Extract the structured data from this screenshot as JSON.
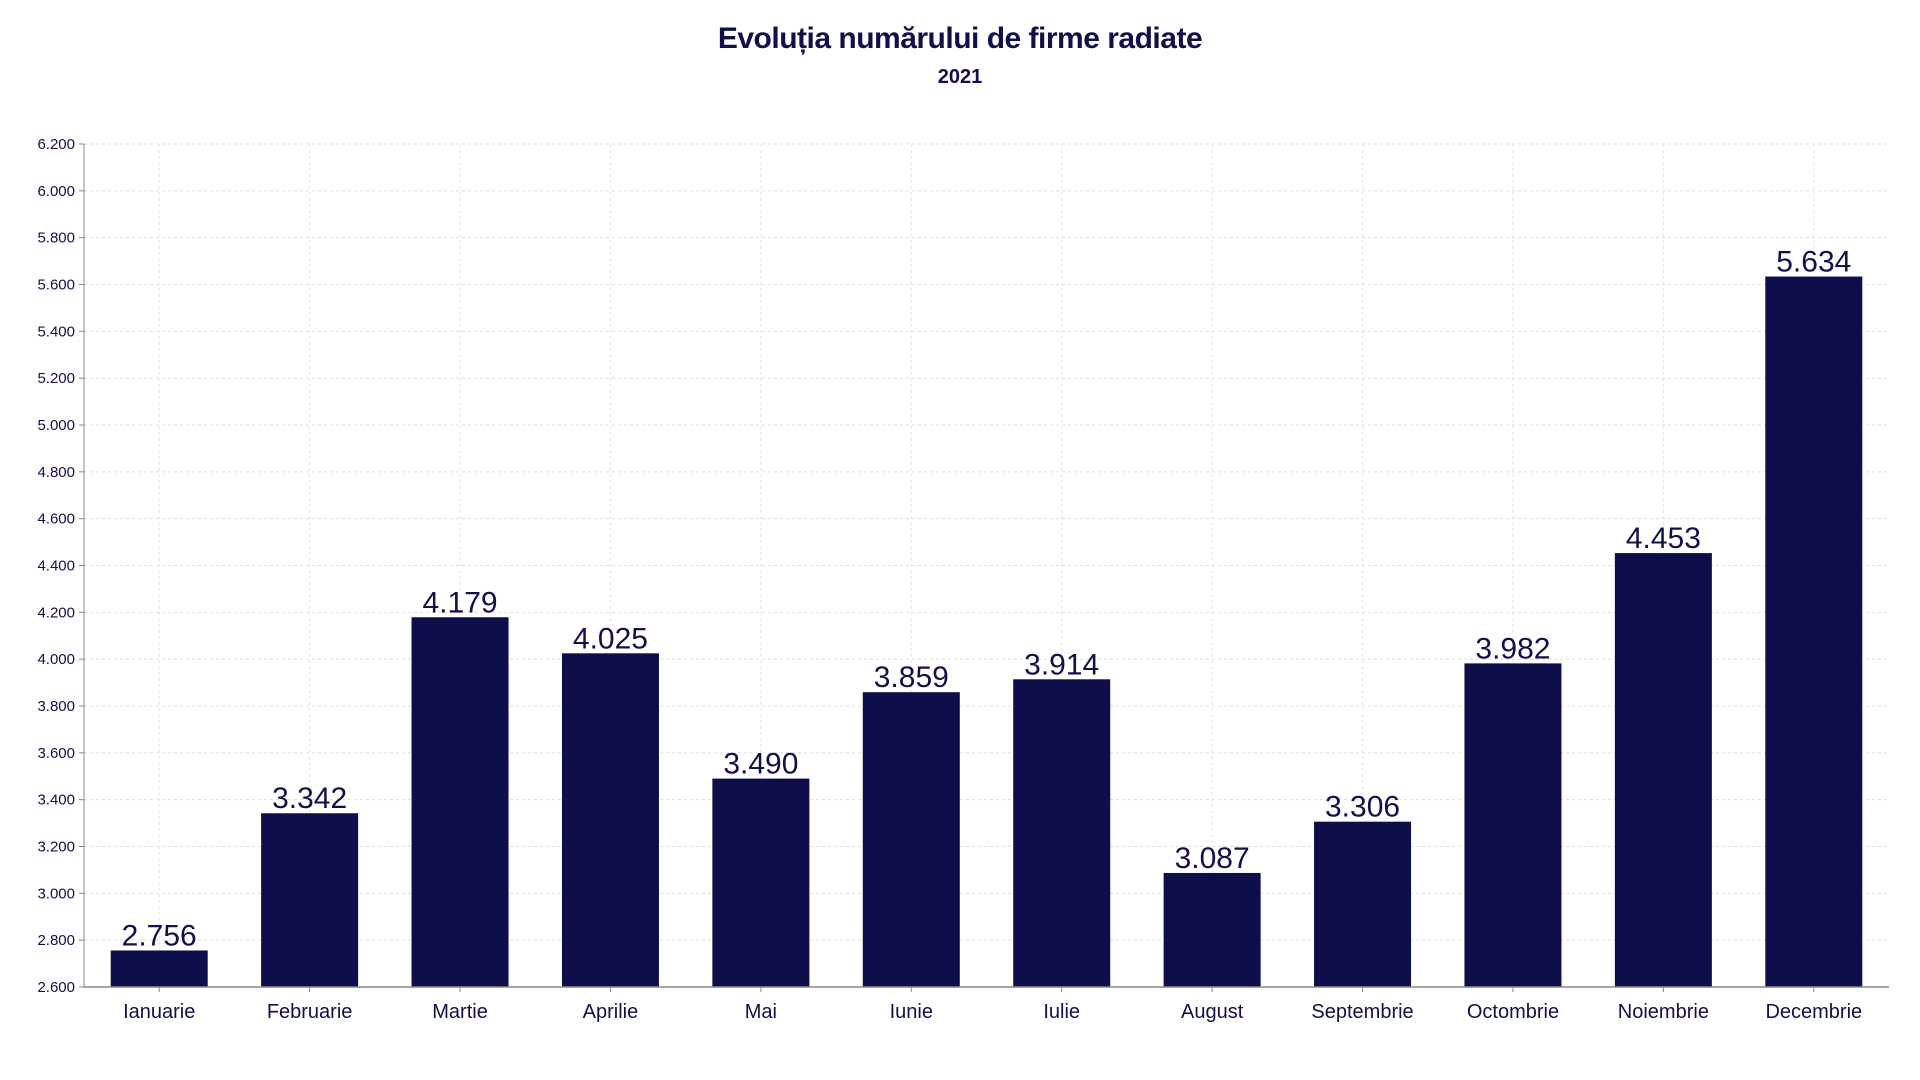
{
  "chart_data": {
    "type": "bar",
    "title": "Evoluția numărului de firme radiate",
    "subtitle": "2021",
    "xlabel": "",
    "ylabel": "",
    "categories": [
      "Ianuarie",
      "Februarie",
      "Martie",
      "Aprilie",
      "Mai",
      "Iunie",
      "Iulie",
      "August",
      "Septembrie",
      "Octombrie",
      "Noiembrie",
      "Decembrie"
    ],
    "values": [
      2756,
      3342,
      4179,
      4025,
      3490,
      3859,
      3914,
      3087,
      3306,
      3982,
      4453,
      5634
    ],
    "value_labels": [
      "2.756",
      "3.342",
      "4.179",
      "4.025",
      "3.490",
      "3.859",
      "3.914",
      "3.087",
      "3.306",
      "3.982",
      "4.453",
      "5.634"
    ],
    "ylim": [
      2600,
      6200
    ],
    "yticks": [
      2600,
      2800,
      3000,
      3200,
      3400,
      3600,
      3800,
      4000,
      4200,
      4400,
      4600,
      4800,
      5000,
      5200,
      5400,
      5600,
      5800,
      6000,
      6200
    ],
    "ytick_labels": [
      "2.600",
      "2.800",
      "3.000",
      "3.200",
      "3.400",
      "3.600",
      "3.800",
      "4.000",
      "4.200",
      "4.400",
      "4.600",
      "4.800",
      "5.000",
      "5.200",
      "5.400",
      "5.600",
      "5.800",
      "6.000",
      "6.200"
    ],
    "grid": true,
    "bar_color": "#0e0e4a",
    "text_color": "#10104a"
  }
}
